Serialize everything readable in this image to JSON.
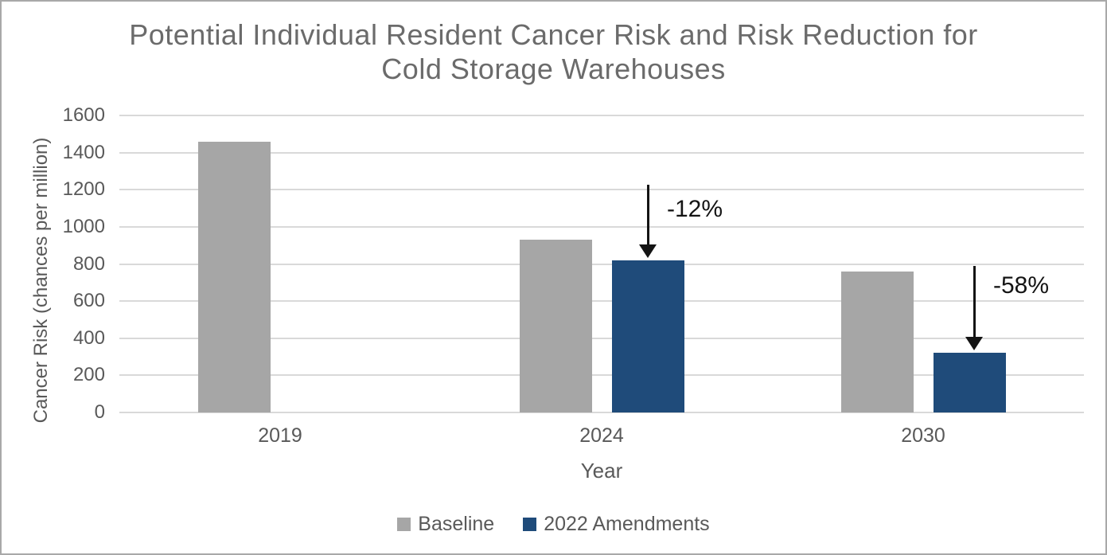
{
  "chart_data": {
    "type": "bar",
    "title": "Potential Individual Resident Cancer Risk and Risk Reduction for Cold Storage Warehouses",
    "title_lines": [
      "Potential Individual Resident Cancer Risk and Risk Reduction for",
      "Cold Storage Warehouses"
    ],
    "xlabel": "Year",
    "ylabel": "Cancer Risk (chances per million)",
    "ylim": [
      0,
      1600
    ],
    "ytick_step": 200,
    "ytick_labels": [
      "0",
      "200",
      "400",
      "600",
      "800",
      "1000",
      "1200",
      "1400",
      "1600"
    ],
    "grid": true,
    "legend_position": "bottom",
    "categories": [
      "2019",
      "2024",
      "2030"
    ],
    "series": [
      {
        "name": "Baseline",
        "color": "#a6a6a6",
        "values": [
          1460,
          930,
          760
        ]
      },
      {
        "name": "2022 Amendments",
        "color": "#1f4b7a",
        "values": [
          null,
          820,
          320
        ]
      }
    ],
    "annotations": [
      {
        "label": "-12%",
        "category": "2024",
        "series": "2022 Amendments",
        "arrow_length": 92,
        "arrow_dx": 0,
        "text_dx": 24,
        "text_dy": 14
      },
      {
        "label": "-58%",
        "category": "2030",
        "series": "2022 Amendments",
        "arrow_length": 106,
        "arrow_dx": 6,
        "text_dx": 24,
        "text_dy": 8
      }
    ],
    "colors": {
      "title_text": "#6b6b6b",
      "axis_text": "#595959",
      "gridline": "#d9d9d9",
      "annotation_text": "#141414",
      "baseline_bar": "#a6a6a6",
      "amendments_bar": "#1f4b7a"
    }
  }
}
